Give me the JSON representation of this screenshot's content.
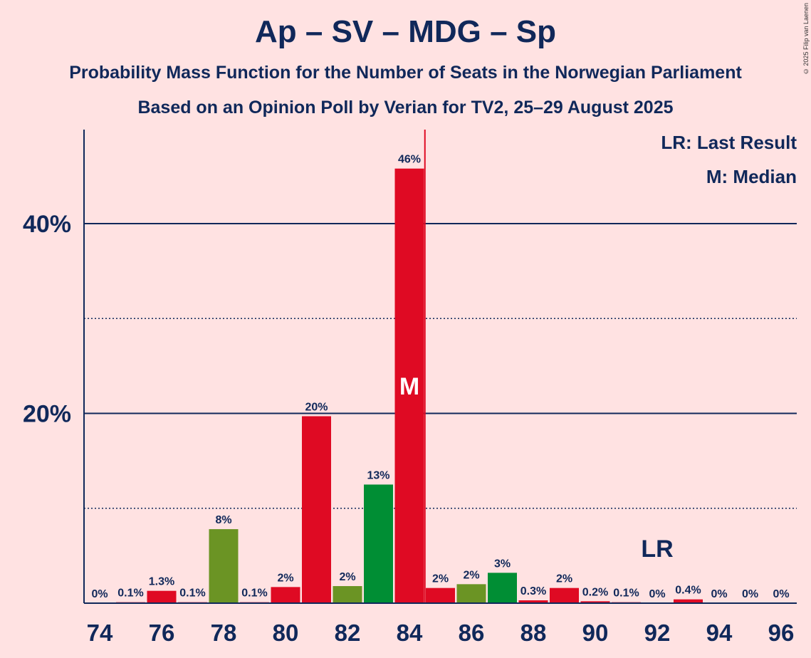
{
  "title": "Ap – SV – MDG – Sp",
  "subtitle1": "Probability Mass Function for the Number of Seats in the Norwegian Parliament",
  "subtitle2": "Based on an Opinion Poll by Verian for TV2, 25–29 August 2025",
  "copyright": "© 2025 Filip van Laenen",
  "legend": {
    "lr": "LR: Last Result",
    "m": "M: Median"
  },
  "colors": {
    "red": "#DF0A23",
    "olive": "#6B9424",
    "green": "#008E34",
    "background": "#FFE2E2",
    "text": "#10285A"
  },
  "chart_data": {
    "type": "bar",
    "title": "Ap – SV – MDG – Sp",
    "xlabel": "",
    "ylabel": "",
    "x": [
      74,
      75,
      76,
      77,
      78,
      79,
      80,
      81,
      82,
      83,
      84,
      85,
      86,
      87,
      88,
      89,
      90,
      91,
      92,
      93,
      94,
      95,
      96
    ],
    "values": [
      0,
      0.1,
      1.3,
      0.1,
      7.8,
      0.1,
      1.7,
      19.7,
      1.8,
      12.5,
      45.8,
      1.6,
      2.0,
      3.2,
      0.3,
      1.6,
      0.2,
      0.1,
      0,
      0.4,
      0,
      0,
      0
    ],
    "labels": [
      "0%",
      "0.1%",
      "1.3%",
      "0.1%",
      "8%",
      "0.1%",
      "2%",
      "20%",
      "2%",
      "13%",
      "46%",
      "2%",
      "2%",
      "3%",
      "0.3%",
      "2%",
      "0.2%",
      "0.1%",
      "0%",
      "0.4%",
      "0%",
      "0%",
      "0%"
    ],
    "bar_colors": [
      "red",
      "red",
      "red",
      "red",
      "olive",
      "red",
      "red",
      "red",
      "olive",
      "green",
      "red",
      "red",
      "olive",
      "green",
      "red",
      "red",
      "red",
      "red",
      "red",
      "red",
      "red",
      "red",
      "red"
    ],
    "x_ticks": [
      74,
      76,
      78,
      80,
      82,
      84,
      86,
      88,
      90,
      92,
      94,
      96
    ],
    "x_tick_labels": [
      "74",
      "76",
      "78",
      "80",
      "82",
      "84",
      "86",
      "88",
      "90",
      "92",
      "94",
      "96"
    ],
    "y_ticks": [
      20,
      40
    ],
    "y_tick_labels": [
      "20%",
      "40%"
    ],
    "y_minor_ticks": [
      10,
      30
    ],
    "ylim": [
      0,
      50
    ],
    "median": 84,
    "median_label": "M",
    "last_result": 92,
    "last_result_label": "LR",
    "majority_line": 84.5
  }
}
